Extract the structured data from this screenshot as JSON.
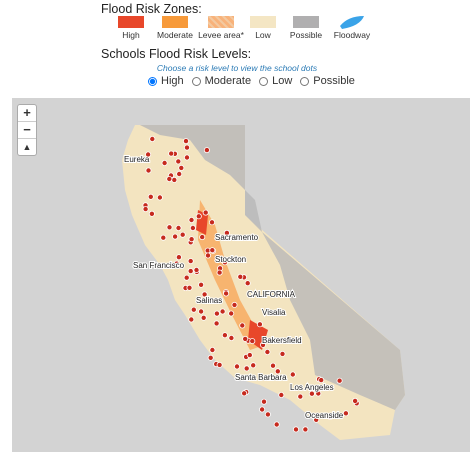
{
  "legend": {
    "title": "Flood Risk Zones:",
    "items": [
      "High",
      "Moderate",
      "Levee area*",
      "Low",
      "Possible",
      "Floodway"
    ]
  },
  "schools": {
    "title": "Schools Flood Risk Levels:",
    "hint": "Choose a risk level to view the school dots",
    "options": [
      "High",
      "Moderate",
      "Low",
      "Possible"
    ]
  },
  "zoom": [
    "+",
    "−",
    "▲"
  ],
  "map": {
    "labels": [
      "Eureka",
      "Sacramento",
      "Stockton",
      "San Francisco",
      "Salinas",
      "CALIFORNIA",
      "Visalia",
      "Bakersfield",
      "Santa Barbara",
      "Los Angeles",
      "Oceanside"
    ]
  }
}
